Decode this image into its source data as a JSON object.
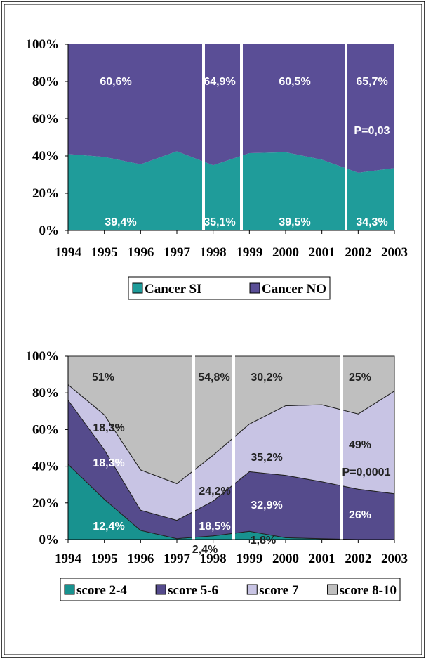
{
  "chart_data": [
    {
      "type": "stacked_area",
      "categories": [
        "1994",
        "1995",
        "1996",
        "1997",
        "1998",
        "1999",
        "2000",
        "2001",
        "2002",
        "2003"
      ],
      "series": [
        {
          "name": "Cancer SI",
          "color": "#1f9c9a",
          "values": [
            41,
            39.5,
            35.5,
            42.5,
            35,
            41.5,
            42,
            38,
            31,
            33.5
          ]
        },
        {
          "name": "Cancer NO",
          "color": "#5a4e96",
          "values": [
            59,
            60.5,
            64.5,
            57.5,
            65,
            58.5,
            58,
            62,
            69,
            66.5
          ]
        }
      ],
      "ylim": [
        0,
        100
      ],
      "yticks": [
        {
          "value": 0,
          "label": "0%"
        },
        {
          "value": 20,
          "label": "20%"
        },
        {
          "value": 40,
          "label": "40%"
        },
        {
          "value": 60,
          "label": "60%"
        },
        {
          "value": 80,
          "label": "80%"
        },
        {
          "value": 100,
          "label": "100%"
        }
      ],
      "annotations": [
        "60,6%",
        "64,9%",
        "60,5%",
        "65,7%",
        "P=0,03",
        "39,4%",
        "35,1%",
        "39,5%",
        "34,3%"
      ]
    },
    {
      "type": "stacked_area",
      "categories": [
        "1994",
        "1995",
        "1996",
        "1997",
        "1998",
        "1999",
        "2000",
        "2001",
        "2002",
        "2003"
      ],
      "series": [
        {
          "name": "score 2-4",
          "color": "#18928f",
          "values": [
            41,
            22,
            5,
            0.5,
            2,
            4.5,
            1,
            0.5,
            0,
            0
          ]
        },
        {
          "name": "score 5-6",
          "color": "#554b8c",
          "values": [
            35,
            27,
            11,
            10,
            19,
            32.5,
            34,
            31,
            27.5,
            25
          ]
        },
        {
          "name": "score 7",
          "color": "#c8c4e4",
          "values": [
            8.5,
            19,
            22,
            20,
            25,
            26,
            38,
            42,
            41,
            56
          ]
        },
        {
          "name": "score 8-10",
          "color": "#bfbfbf",
          "values": [
            15.5,
            32,
            62,
            69.5,
            54,
            37,
            27,
            26.5,
            31.5,
            19
          ]
        }
      ],
      "ylim": [
        0,
        100
      ],
      "yticks": [
        {
          "value": 0,
          "label": "0%"
        },
        {
          "value": 20,
          "label": "20%"
        },
        {
          "value": 40,
          "label": "40%"
        },
        {
          "value": 60,
          "label": "60%"
        },
        {
          "value": 80,
          "label": "80%"
        },
        {
          "value": 100,
          "label": "100%"
        }
      ],
      "annotations": [
        "51%",
        "54,8%",
        "30,2%",
        "25%",
        "18,3%",
        "18,3%",
        "12,4%",
        "24,2%",
        "18,5%",
        "2,4%",
        "35,2%",
        "32,9%",
        "1,8%",
        "49%",
        "P=0,0001",
        "26%"
      ]
    }
  ]
}
